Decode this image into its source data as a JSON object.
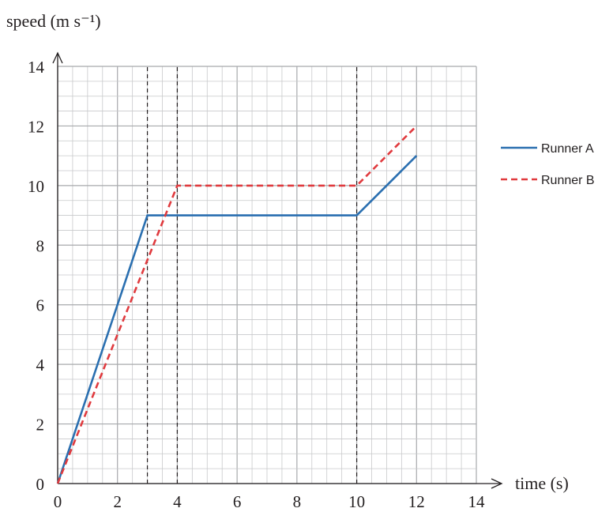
{
  "chart_data": {
    "type": "line",
    "ylabel": "speed (m s⁻¹)",
    "xlabel": "time (s)",
    "xlim": [
      0,
      14
    ],
    "ylim": [
      0,
      14
    ],
    "x_ticks": [
      "0",
      "2",
      "4",
      "6",
      "8",
      "10",
      "12",
      "14"
    ],
    "y_ticks": [
      "0",
      "2",
      "4",
      "6",
      "8",
      "10",
      "12",
      "14"
    ],
    "grid": "on",
    "minor_grid_step": 0.5,
    "reference_lines_x": [
      3,
      4,
      10
    ],
    "legend_position": "right",
    "series": [
      {
        "name": "Runner A",
        "color": "#2a6fb0",
        "style": "solid",
        "points": [
          [
            0,
            0
          ],
          [
            3,
            9
          ],
          [
            10,
            9
          ],
          [
            12,
            11
          ]
        ]
      },
      {
        "name": "Runner B",
        "color": "#e03a3e",
        "style": "dashed",
        "points": [
          [
            0,
            0
          ],
          [
            4,
            10
          ],
          [
            10,
            10
          ],
          [
            12,
            12
          ]
        ]
      }
    ]
  }
}
